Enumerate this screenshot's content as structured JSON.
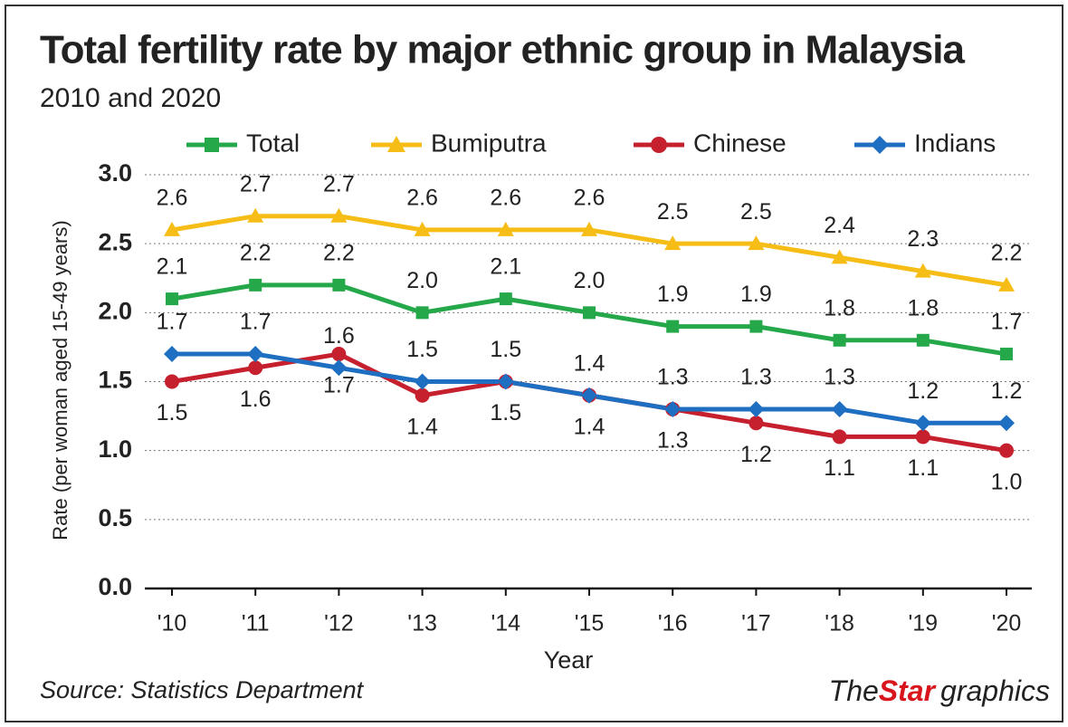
{
  "chart_data": {
    "type": "line",
    "title": "Total fertility rate by major ethnic group in Malaysia",
    "subtitle": "2010 and 2020",
    "y_label": "Rate (per woman aged 15-49 years)",
    "x_label": "Year",
    "source": "Source: Statistics Department",
    "branding": {
      "the": "The",
      "star": "Star",
      "graphics": "graphics"
    },
    "categories": [
      "'10",
      "'11",
      "'12",
      "'13",
      "'14",
      "'15",
      "'16",
      "'17",
      "'18",
      "'19",
      "'20"
    ],
    "ylim": [
      0,
      3
    ],
    "yticks": [
      {
        "value": 0,
        "label": "0.0"
      },
      0.5,
      {
        "value": 1,
        "label": "1.0"
      },
      1.5,
      {
        "value": 2,
        "label": "2.0"
      },
      2.5,
      {
        "value": 3,
        "label": "3.0"
      }
    ],
    "grid": true,
    "legend": "top",
    "series": [
      {
        "name": "Total",
        "color": "#25a84a",
        "marker": "square",
        "values": [
          2.1,
          2.2,
          2.2,
          2,
          2.1,
          2,
          1.9,
          1.9,
          1.8,
          1.8,
          1.7
        ],
        "value_labels": [
          "2.1",
          "2.2",
          "2.2",
          "2.0",
          "2.1",
          "2.0",
          "1.9",
          "1.9",
          "1.8",
          "1.8",
          "1.7"
        ]
      },
      {
        "name": "Bumiputra",
        "color": "#f6bd16",
        "marker": "triangle",
        "values": [
          2.6,
          2.7,
          2.7,
          2.6,
          2.6,
          2.6,
          2.5,
          2.5,
          2.4,
          2.3,
          2.2
        ],
        "value_labels": [
          "2.6",
          "2.7",
          "2.7",
          "2.6",
          "2.6",
          "2.6",
          "2.5",
          "2.5",
          "2.4",
          "2.3",
          "2.2"
        ]
      },
      {
        "name": "Chinese",
        "color": "#c61f2e",
        "marker": "circle",
        "values": [
          1.5,
          1.6,
          1.7,
          1.4,
          1.5,
          1.4,
          1.3,
          1.2,
          1.1,
          1.1,
          1
        ],
        "value_labels": [
          "1.5",
          "1.6",
          "1.7",
          "1.4",
          "1.5",
          "1.4",
          "1.3",
          "1.2",
          "1.1",
          "1.1",
          "1.0"
        ]
      },
      {
        "name": "Indians",
        "color": "#1e6fc1",
        "marker": "diamond",
        "values": [
          1.7,
          1.7,
          1.6,
          1.5,
          1.5,
          1.4,
          1.3,
          1.3,
          1.3,
          1.2,
          1.2
        ],
        "value_labels": [
          "1.7",
          "1.7",
          "1.6",
          "1.5",
          "1.5",
          "1.4",
          "1.3",
          "1.3",
          "1.3",
          "1.2",
          "1.2"
        ]
      }
    ]
  }
}
